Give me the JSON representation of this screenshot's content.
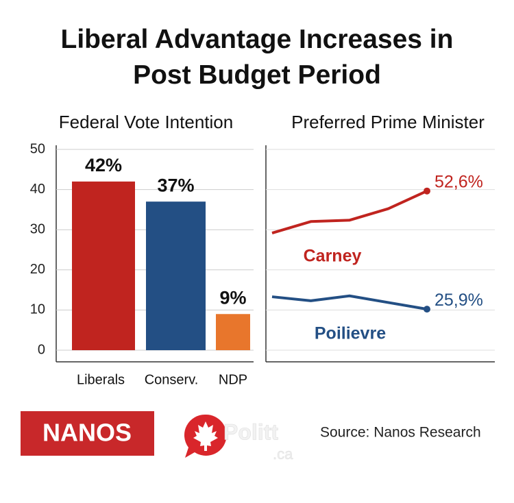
{
  "title": "Liberal Advantage Increases in Post Budget Period",
  "chart_data": [
    {
      "type": "bar",
      "title": "Federal Vote Intention",
      "categories": [
        "Liberals",
        "Conserv.",
        "NDP"
      ],
      "values": [
        42,
        37,
        9
      ],
      "value_labels": [
        "42%",
        "37%",
        "9%"
      ],
      "colors": [
        "#c0241f",
        "#234f84",
        "#e8762c"
      ],
      "ylim": [
        0,
        50
      ],
      "yticks": [
        0,
        10,
        20,
        30,
        40,
        50
      ],
      "grid": true
    },
    {
      "type": "line",
      "title": "Preferred Prime Minister",
      "categories": [
        null,
        null,
        null,
        null,
        null
      ],
      "ylim": [
        14,
        62
      ],
      "series": [
        {
          "name": "Carney",
          "color": "#c0241f",
          "values": [
            43.1,
            45.7,
            46.0,
            48.6,
            52.6
          ],
          "value_labels": [
            null,
            null,
            null,
            null,
            "52,6%"
          ]
        },
        {
          "name": "Poilievre",
          "color": "#234f84",
          "values": [
            28.7,
            27.8,
            28.9,
            27.4,
            25.9
          ],
          "value_labels": [
            null,
            null,
            null,
            null,
            "25,9%"
          ]
        }
      ]
    }
  ],
  "footer": {
    "brand": "NANOS",
    "logo_name": "Politt",
    "logo_domain": ".ca",
    "source": "Source: Nanos Research"
  }
}
